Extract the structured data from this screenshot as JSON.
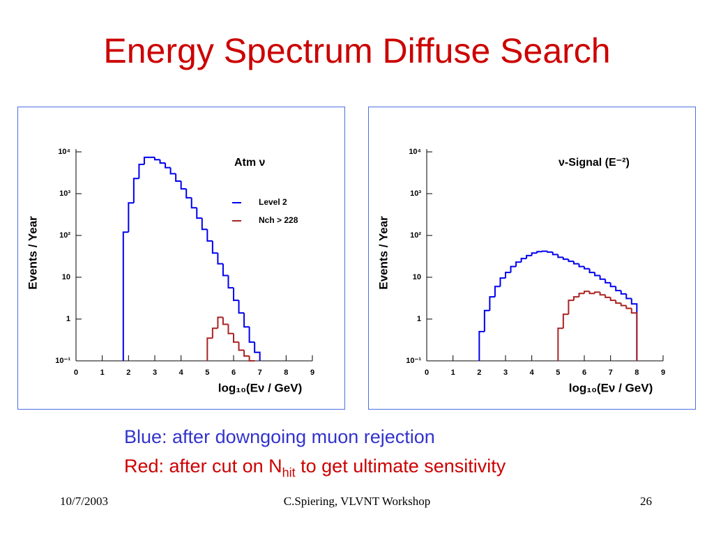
{
  "slide": {
    "title": "Energy Spectrum Diffuse Search",
    "caption_blue": "Blue: after downgoing muon rejection",
    "caption_red": {
      "before": "Red: after cut on N",
      "sub": "hit",
      "after": " to get ultimate sensitivity"
    },
    "footer": {
      "date": "10/7/2003",
      "center": "C.Spiering, VLVNT Workshop",
      "page": "26"
    }
  },
  "chart_data": [
    {
      "type": "histogram",
      "annotation": "Atm ν",
      "ylabel": "Events / Year",
      "xlabel": "log₁₀(Eν / GeV)",
      "xlim": [
        0,
        9
      ],
      "xticks": [
        0,
        1,
        2,
        3,
        4,
        5,
        6,
        7,
        8,
        9
      ],
      "ylim": [
        0.1,
        10000
      ],
      "log_y": true,
      "yticks": [
        {
          "value": 0.1,
          "label": "10⁻¹"
        },
        1,
        10,
        {
          "value": 100,
          "label": "10²"
        },
        {
          "value": 1000,
          "label": "10³"
        },
        {
          "value": 10000,
          "label": "10⁴"
        }
      ],
      "legend": "upper right",
      "series": [
        {
          "name": "Level 2",
          "color": "#0000ee",
          "bins": [
            1.8,
            2.0,
            2.2,
            2.4,
            2.6,
            2.8,
            3.0,
            3.2,
            3.4,
            3.6,
            3.8,
            4.0,
            4.2,
            4.4,
            4.6,
            4.8,
            5.0,
            5.2,
            5.4,
            5.6,
            5.8,
            6.0,
            6.2,
            6.4,
            6.6,
            6.8,
            7.0
          ],
          "values": [
            120,
            600,
            2300,
            5000,
            7400,
            7400,
            6500,
            5400,
            4200,
            3000,
            2000,
            1300,
            800,
            460,
            260,
            140,
            74,
            38,
            21,
            11,
            5.6,
            2.8,
            1.4,
            0.65,
            0.28,
            0.16
          ]
        },
        {
          "name": "Nch > 228",
          "color": "#aa2222",
          "bins": [
            5.0,
            5.2,
            5.4,
            5.6,
            5.8,
            6.0,
            6.2,
            6.4,
            6.6,
            6.8
          ],
          "values": [
            0.35,
            0.6,
            1.1,
            0.75,
            0.45,
            0.28,
            0.18,
            0.13,
            0.1
          ]
        }
      ]
    },
    {
      "type": "histogram",
      "annotation": "ν-Signal (E⁻²)",
      "ylabel": "Events / Year",
      "xlabel": "log₁₀(Eν / GeV)",
      "xlim": [
        0,
        9
      ],
      "xticks": [
        0,
        1,
        2,
        3,
        4,
        5,
        6,
        7,
        8,
        9
      ],
      "ylim": [
        0.1,
        10000
      ],
      "log_y": true,
      "yticks": [
        {
          "value": 0.1,
          "label": "10⁻¹"
        },
        1,
        10,
        {
          "value": 100,
          "label": "10²"
        },
        {
          "value": 1000,
          "label": "10³"
        },
        {
          "value": 10000,
          "label": "10⁴"
        }
      ],
      "series": [
        {
          "color": "#0000ee",
          "bins": [
            2.0,
            2.2,
            2.4,
            2.6,
            2.8,
            3.0,
            3.2,
            3.4,
            3.6,
            3.8,
            4.0,
            4.2,
            4.4,
            4.6,
            4.8,
            5.0,
            5.2,
            5.4,
            5.6,
            5.8,
            6.0,
            6.2,
            6.4,
            6.6,
            6.8,
            7.0,
            7.2,
            7.4,
            7.6,
            7.8,
            8.0
          ],
          "values": [
            0.5,
            1.6,
            3.4,
            6,
            9.6,
            13,
            18,
            23,
            28,
            33,
            38,
            41,
            42,
            40,
            35,
            30,
            27,
            24,
            21,
            18,
            16,
            13,
            11,
            9,
            7.4,
            6,
            4.8,
            4,
            3.1,
            2.3
          ]
        },
        {
          "color": "#aa2222",
          "bins": [
            5.0,
            5.2,
            5.4,
            5.6,
            5.8,
            6.0,
            6.2,
            6.4,
            6.6,
            6.8,
            7.0,
            7.2,
            7.4,
            7.6,
            7.8,
            8.0
          ],
          "values": [
            0.6,
            1.3,
            2.8,
            3.4,
            4.1,
            4.6,
            4.1,
            4.4,
            3.8,
            3.3,
            2.8,
            2.4,
            2.1,
            1.8,
            1.4
          ]
        }
      ]
    }
  ]
}
